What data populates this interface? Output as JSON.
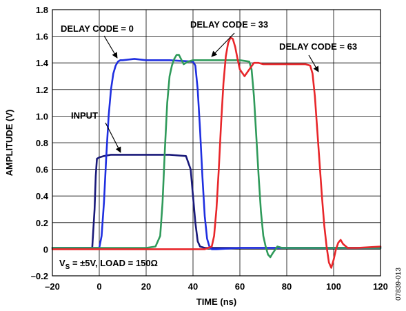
{
  "chart_data": {
    "type": "line",
    "title": "",
    "xlabel": "TIME (ns)",
    "ylabel": "AMPLITUDE (V)",
    "xlim": [
      -20,
      120
    ],
    "ylim": [
      -0.2,
      1.8
    ],
    "xticks": [
      -20,
      0,
      20,
      40,
      60,
      80,
      100,
      120
    ],
    "xtick_labels": [
      "–20",
      "0",
      "20",
      "40",
      "60",
      "80",
      "100",
      "120"
    ],
    "yticks": [
      -0.2,
      0,
      0.2,
      0.4,
      0.6,
      0.8,
      1.0,
      1.2,
      1.4,
      1.6,
      1.8
    ],
    "ytick_labels": [
      "–0.2",
      "0",
      "0.2",
      "0.4",
      "0.6",
      "0.8",
      "1.0",
      "1.2",
      "1.4",
      "1.6",
      "1.8"
    ],
    "grid": true,
    "series": [
      {
        "color": "#1a1a7a",
        "x": [
          -20,
          -3,
          -2,
          -1.5,
          -1,
          0,
          2,
          5,
          10,
          20,
          30,
          37,
          39,
          40,
          41,
          42,
          43,
          45,
          50,
          60,
          80,
          100,
          120
        ],
        "y": [
          0.01,
          0.01,
          0.3,
          0.55,
          0.68,
          0.69,
          0.7,
          0.71,
          0.71,
          0.71,
          0.71,
          0.7,
          0.6,
          0.4,
          0.2,
          0.06,
          0.02,
          0.01,
          0.01,
          0.01,
          0.01,
          0.01,
          0.01
        ]
      },
      {
        "color": "#1f2fe0",
        "x": [
          -20,
          0,
          1,
          2,
          3,
          4,
          5,
          6,
          7,
          8,
          9,
          10,
          15,
          20,
          30,
          40,
          41,
          42,
          43,
          44,
          45,
          46,
          47,
          48,
          50,
          60,
          80,
          100,
          120
        ],
        "y": [
          0.01,
          0.01,
          0.1,
          0.35,
          0.7,
          1.0,
          1.2,
          1.32,
          1.38,
          1.41,
          1.42,
          1.42,
          1.43,
          1.42,
          1.42,
          1.41,
          1.38,
          1.2,
          0.9,
          0.55,
          0.25,
          0.08,
          0.02,
          0.0,
          0.0,
          0.01,
          0.01,
          0.01,
          0.01
        ]
      },
      {
        "color": "#2f9a5a",
        "x": [
          -20,
          20,
          24,
          26,
          27,
          28,
          29,
          30,
          31,
          32,
          33,
          34,
          36,
          38,
          40,
          45,
          50,
          55,
          60,
          64,
          65,
          66,
          67,
          68,
          69,
          70,
          71,
          72,
          73,
          74,
          76,
          78,
          80,
          90,
          100,
          120
        ],
        "y": [
          0.01,
          0.01,
          0.02,
          0.1,
          0.35,
          0.75,
          1.1,
          1.3,
          1.38,
          1.43,
          1.46,
          1.46,
          1.39,
          1.41,
          1.42,
          1.42,
          1.42,
          1.42,
          1.42,
          1.41,
          1.35,
          1.15,
          0.85,
          0.55,
          0.28,
          0.1,
          0.02,
          -0.04,
          -0.06,
          -0.03,
          0.02,
          0.01,
          0.01,
          0.01,
          0.01,
          0.01
        ]
      },
      {
        "color": "#e8262a",
        "x": [
          -20,
          40,
          45,
          48,
          49,
          50,
          51,
          52,
          53,
          54,
          55,
          56,
          57,
          58,
          59,
          60,
          62,
          64,
          66,
          68,
          70,
          80,
          88,
          90,
          91,
          92,
          93,
          94,
          95,
          96,
          97,
          98,
          99,
          100,
          101,
          102,
          103,
          104,
          106,
          110,
          120
        ],
        "y": [
          0.0,
          0.0,
          0.0,
          0.02,
          0.1,
          0.3,
          0.6,
          0.95,
          1.25,
          1.45,
          1.55,
          1.59,
          1.58,
          1.52,
          1.43,
          1.35,
          1.3,
          1.35,
          1.4,
          1.4,
          1.39,
          1.39,
          1.39,
          1.38,
          1.32,
          1.15,
          0.9,
          0.65,
          0.4,
          0.18,
          0.02,
          -0.1,
          -0.14,
          -0.08,
          0.0,
          0.05,
          0.07,
          0.04,
          0.01,
          0.01,
          0.02
        ]
      }
    ],
    "annotations": [
      {
        "text": "DELAY CODE = 0",
        "x": 8,
        "y": 1.47
      },
      {
        "text": "DELAY CODE = 33",
        "x": 44,
        "y": 1.5
      },
      {
        "text": "DELAY CODE = 63",
        "x": 92,
        "y": 1.45
      },
      {
        "text": "INPUT",
        "x": 20,
        "y": 0.72
      }
    ],
    "note_prefix": "V",
    "note_sub": "S",
    "note_rest": " = ±5V, LOAD = 150Ω",
    "figure_code": "07839-013"
  }
}
